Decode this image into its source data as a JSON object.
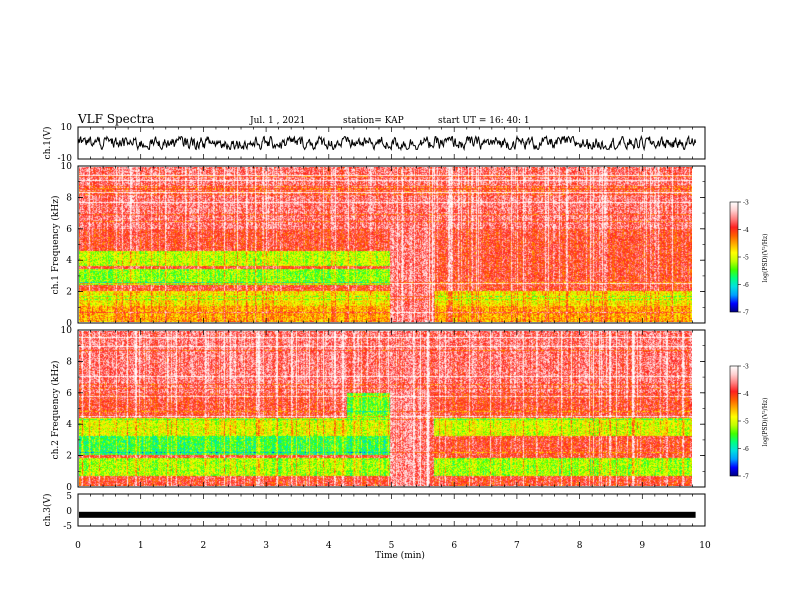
{
  "header": {
    "title": "VLF Spectra",
    "date": "Jul. 1 , 2021",
    "station": "station= KAP",
    "start": "start UT = 16: 40: 1"
  },
  "colors": {
    "spectrogram_palette": [
      "#000080",
      "#0000ff",
      "#00a0ff",
      "#00e0e0",
      "#00ff80",
      "#40ff00",
      "#c0ff00",
      "#ffff00",
      "#ffb000",
      "#ff6000",
      "#ff2020",
      "#ff8080",
      "#ffd0d0",
      "#ffffff"
    ]
  },
  "chart_data": [
    {
      "type": "line",
      "name": "ch1-timeseries",
      "ylabel": "ch.1(V)",
      "ylim": [
        -10,
        10
      ],
      "yticks": [
        "10",
        "-10"
      ],
      "xlim": [
        0,
        10
      ],
      "series_description_value_range": [
        -4,
        4
      ]
    },
    {
      "type": "heatmap",
      "name": "ch1-spectrogram",
      "ylabel": "ch.1 Frequency (kHz)",
      "ylim": [
        0,
        10
      ],
      "yticks": [
        "0",
        "2",
        "4",
        "6",
        "8",
        "10"
      ],
      "xlim": [
        0,
        10
      ],
      "colorbar": {
        "label": "log(PSD)(V²/Hz)",
        "range": [
          -7,
          -3
        ],
        "ticks": [
          "-3",
          "-4",
          "-5",
          "-6",
          "-7"
        ]
      },
      "bands_khz": [
        {
          "band": [
            2.4,
            3.4
          ],
          "level": -5.3,
          "until_min": 5.0
        },
        {
          "band": [
            3.6,
            4.6
          ],
          "level": -5.1,
          "until_min": 5.0
        },
        {
          "band": [
            1.0,
            2.0
          ],
          "level": -4.8
        },
        {
          "band": [
            0.0,
            1.0
          ],
          "level": -4.5
        }
      ],
      "event_min": [
        5.0,
        5.7
      ]
    },
    {
      "type": "heatmap",
      "name": "ch2-spectrogram",
      "ylabel": "ch.2 Frequency (kHz)",
      "ylim": [
        0,
        10
      ],
      "yticks": [
        "0",
        "2",
        "4",
        "6",
        "8",
        "10"
      ],
      "xlim": [
        0,
        10
      ],
      "colorbar": {
        "label": "log(PSD)(V²/Hz)",
        "range": [
          -7,
          -3
        ],
        "ticks": [
          "-3",
          "-4",
          "-5",
          "-6",
          "-7"
        ]
      },
      "bands_khz": [
        {
          "band": [
            2.0,
            3.2
          ],
          "level": -5.6,
          "until_min": 5.0
        },
        {
          "band": [
            3.2,
            4.4
          ],
          "level": -5.0
        },
        {
          "band": [
            0.6,
            1.8
          ],
          "level": -5.2
        },
        {
          "band": [
            4.4,
            6.0
          ],
          "level": -5.4,
          "from_min": 4.3,
          "until_min": 5.0
        }
      ],
      "event_min": [
        5.0,
        5.7
      ]
    },
    {
      "type": "line",
      "name": "ch3-timeseries",
      "ylabel": "ch.3(V)",
      "ylim": [
        -5,
        5
      ],
      "yticks": [
        "5",
        "0",
        "-5"
      ],
      "xlim": [
        0,
        10
      ],
      "level": -1.5
    }
  ],
  "xaxis": {
    "label": "Time (min)",
    "ticks": [
      "0",
      "1",
      "2",
      "3",
      "4",
      "5",
      "6",
      "7",
      "8",
      "9",
      "10"
    ],
    "data_end_min": 9.85
  }
}
